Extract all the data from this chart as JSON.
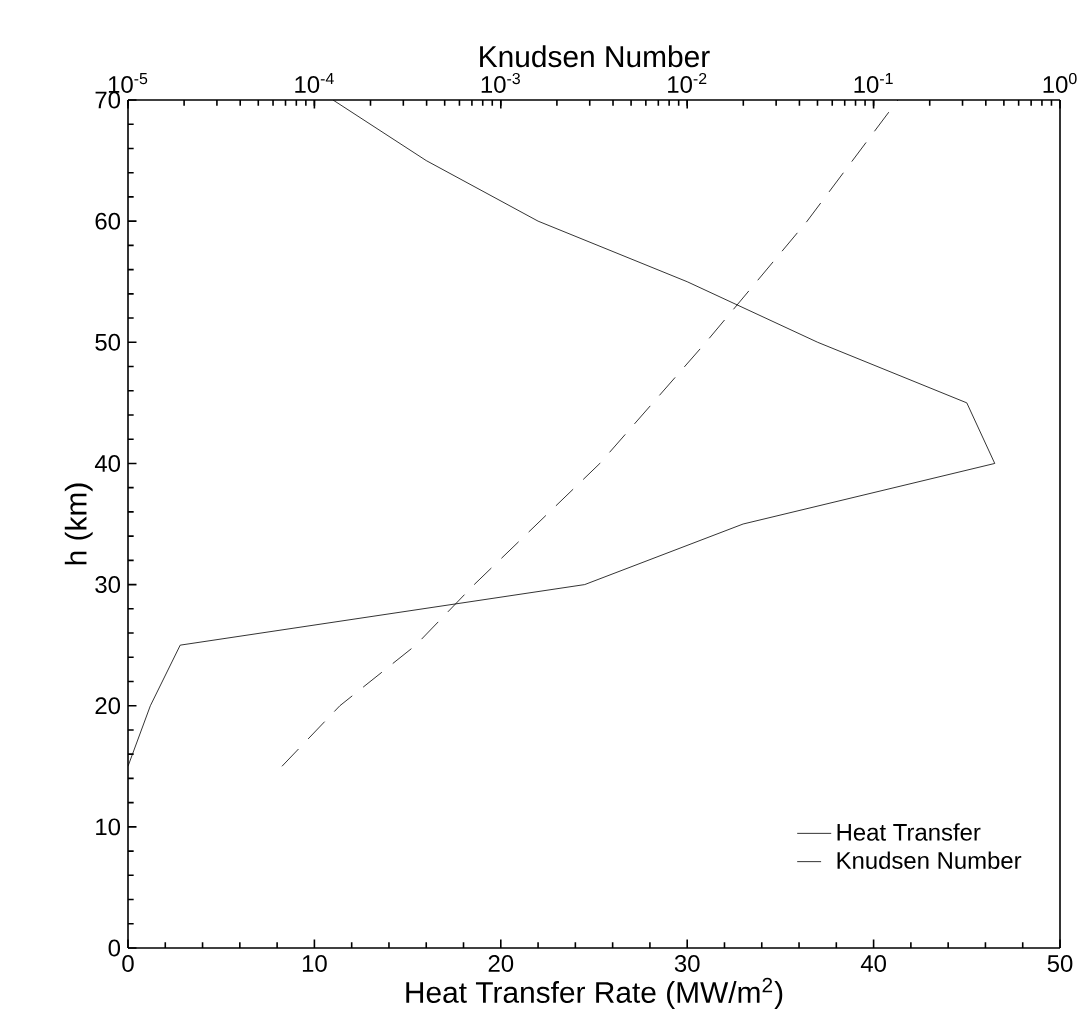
{
  "chart_data": {
    "type": "line",
    "xlabel": "Heat Transfer Rate (MW/m$^{2}$)",
    "ylabel": "h (km)",
    "x2label": "Knudsen Number",
    "xlim": [
      0,
      50
    ],
    "xticks": [
      0,
      10,
      20,
      30,
      40,
      50
    ],
    "ylim": [
      0,
      70
    ],
    "yticks": [
      0,
      10,
      20,
      30,
      40,
      50,
      60,
      70
    ],
    "x2lim": [
      1e-05,
      1
    ],
    "x2ticks": [
      {
        "value": 1e-05,
        "label": "10$^{-5}$"
      },
      {
        "value": 0.0001,
        "label": "10$^{-4}$"
      },
      {
        "value": 0.001,
        "label": "10$^{-3}$"
      },
      {
        "value": 0.01,
        "label": "10$^{-2}$"
      },
      {
        "value": 0.1,
        "label": "10$^{-1}$"
      },
      {
        "value": 1,
        "label": "10$^{0}$"
      }
    ],
    "log": "x2",
    "legend": "bottom right",
    "grid": false,
    "series": [
      {
        "name": "Heat Transfer",
        "color": "#000000",
        "line_style": "solid",
        "x": [
          0,
          1.2,
          2.8,
          24.5,
          33,
          46.5,
          45,
          37,
          30,
          22,
          16,
          11
        ],
        "values": [
          15,
          20,
          25,
          30,
          35,
          40,
          45,
          50,
          55,
          60,
          65,
          70
        ]
      },
      {
        "name": "Knudsen Number",
        "color": "#000000",
        "line_style": "dashed",
        "axis": "x2",
        "x": [
          6.7e-05,
          0.000137,
          0.00035,
          0.00072,
          0.0034,
          0.0126,
          0.044,
          0.135
        ],
        "values": [
          15,
          20,
          25,
          30,
          40,
          50,
          60,
          70
        ]
      }
    ]
  }
}
